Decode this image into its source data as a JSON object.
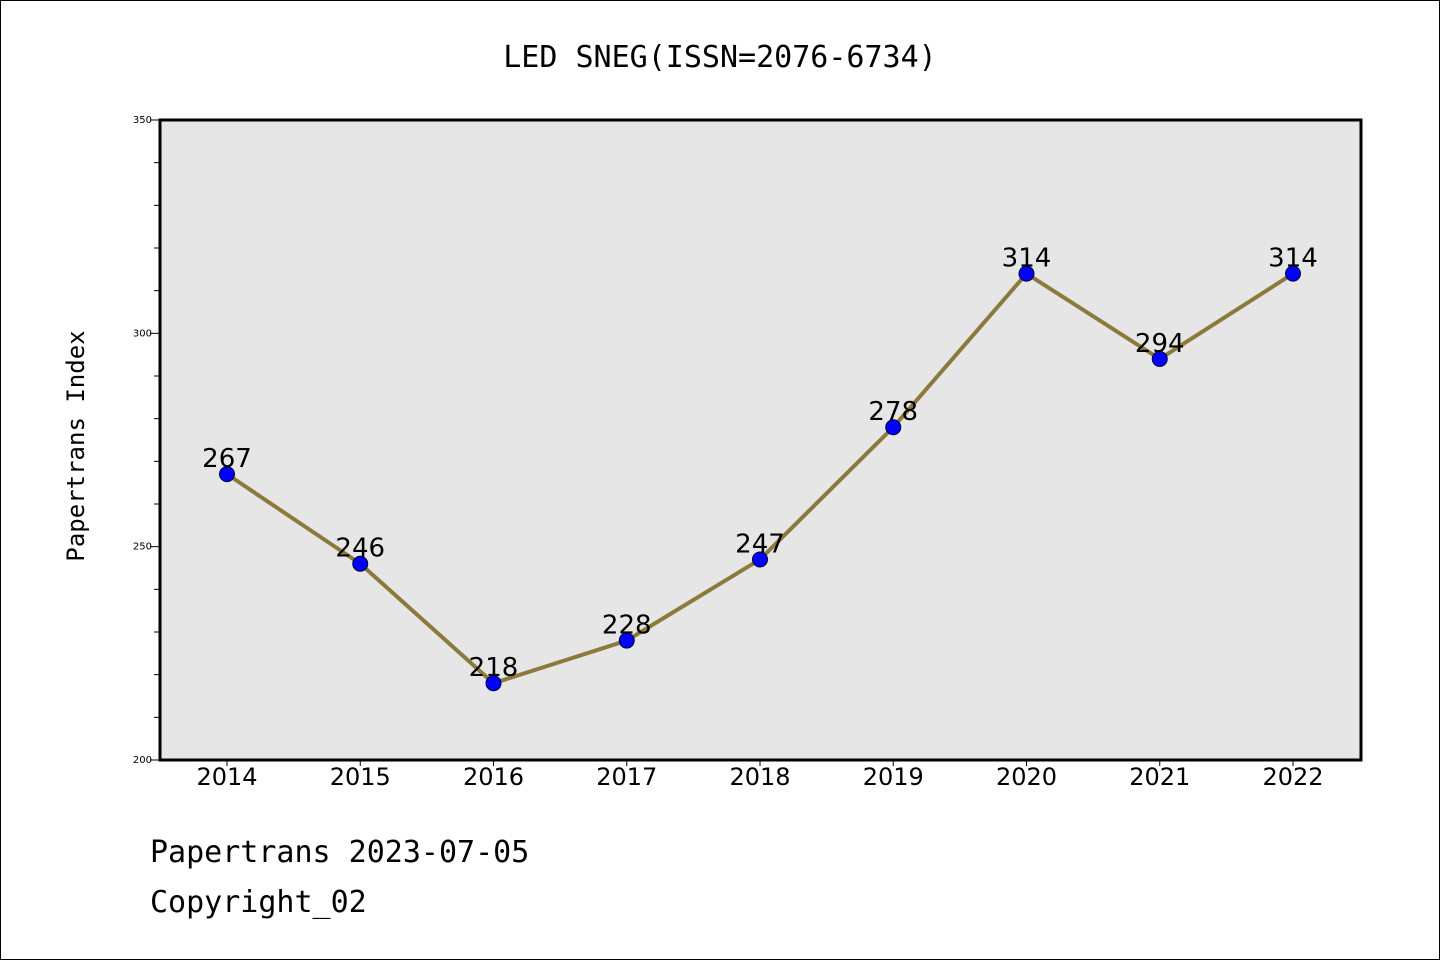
{
  "chart_data": {
    "type": "line",
    "title": "LED SNEG(ISSN=2076-6734)",
    "ylabel": "Papertrans Index",
    "xlabel": "",
    "categories": [
      "2014",
      "2015",
      "2016",
      "2017",
      "2018",
      "2019",
      "2020",
      "2021",
      "2022"
    ],
    "series": [
      {
        "values": [
          267,
          246,
          218,
          228,
          247,
          278,
          314,
          294,
          314
        ]
      }
    ],
    "ylim": [
      200,
      350
    ],
    "yticks": [
      200,
      250,
      300,
      350
    ],
    "grid": false,
    "data_labels": true,
    "colors": {
      "line": "#8c7a3c",
      "marker": "#0000ff",
      "plot_background": "#e6e6e6"
    }
  },
  "footer": {
    "line1": "Papertrans 2023-07-05",
    "line2": "Copyright_02"
  }
}
